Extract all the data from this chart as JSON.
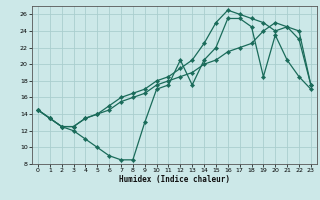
{
  "title": "",
  "xlabel": "Humidex (Indice chaleur)",
  "ylabel": "",
  "bg_color": "#cce8e8",
  "grid_color": "#aacece",
  "line_color": "#1a6b5a",
  "xlim": [
    -0.5,
    23.5
  ],
  "ylim": [
    8,
    27
  ],
  "yticks": [
    8,
    10,
    12,
    14,
    16,
    18,
    20,
    22,
    24,
    26
  ],
  "xticks": [
    0,
    1,
    2,
    3,
    4,
    5,
    6,
    7,
    8,
    9,
    10,
    11,
    12,
    13,
    14,
    15,
    16,
    17,
    18,
    19,
    20,
    21,
    22,
    23
  ],
  "line1_x": [
    0,
    1,
    2,
    3,
    4,
    5,
    6,
    7,
    8,
    9,
    10,
    11,
    12,
    13,
    14,
    15,
    16,
    17,
    18,
    19,
    20,
    21,
    22,
    23
  ],
  "line1_y": [
    14.5,
    13.5,
    12.5,
    12.0,
    11.0,
    10.0,
    9.0,
    8.5,
    8.5,
    13.0,
    17.0,
    17.5,
    20.5,
    17.5,
    20.5,
    22.0,
    25.5,
    25.5,
    24.5,
    18.5,
    23.5,
    20.5,
    18.5,
    17.0
  ],
  "line2_x": [
    0,
    1,
    2,
    3,
    4,
    5,
    6,
    7,
    8,
    9,
    10,
    11,
    12,
    13,
    14,
    15,
    16,
    17,
    18,
    19,
    20,
    21,
    22,
    23
  ],
  "line2_y": [
    14.5,
    13.5,
    12.5,
    12.5,
    13.5,
    14.0,
    14.5,
    15.5,
    16.0,
    16.5,
    17.5,
    18.0,
    18.5,
    19.0,
    20.0,
    20.5,
    21.5,
    22.0,
    22.5,
    24.0,
    25.0,
    24.5,
    24.0,
    17.5
  ],
  "line3_x": [
    0,
    1,
    2,
    3,
    4,
    5,
    6,
    7,
    8,
    9,
    10,
    11,
    12,
    13,
    14,
    15,
    16,
    17,
    18,
    19,
    20,
    21,
    22,
    23
  ],
  "line3_y": [
    14.5,
    13.5,
    12.5,
    12.5,
    13.5,
    14.0,
    15.0,
    16.0,
    16.5,
    17.0,
    18.0,
    18.5,
    19.5,
    20.5,
    22.5,
    25.0,
    26.5,
    26.0,
    25.5,
    25.0,
    24.0,
    24.5,
    23.0,
    17.5
  ]
}
